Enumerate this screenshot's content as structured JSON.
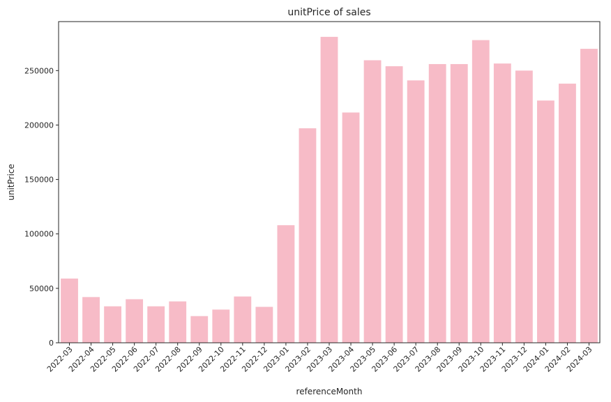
{
  "chart_data": {
    "type": "bar",
    "title": "unitPrice of sales",
    "xlabel": "referenceMonth",
    "ylabel": "unitPrice",
    "categories": [
      "2022-03",
      "2022-04",
      "2022-05",
      "2022-06",
      "2022-07",
      "2022-08",
      "2022-09",
      "2022-10",
      "2022-11",
      "2022-12",
      "2023-01",
      "2023-02",
      "2023-03",
      "2023-04",
      "2023-05",
      "2023-06",
      "2023-07",
      "2023-08",
      "2023-09",
      "2023-10",
      "2023-11",
      "2023-12",
      "2024-01",
      "2024-02",
      "2024-03"
    ],
    "values": [
      59000,
      42000,
      33500,
      40000,
      33500,
      38000,
      24500,
      30500,
      42500,
      33000,
      108000,
      197000,
      281000,
      211500,
      259500,
      254000,
      241000,
      256000,
      256000,
      278000,
      256500,
      250000,
      222500,
      238000,
      270000
    ],
    "ylim": [
      0,
      295000
    ],
    "yticks": [
      0,
      50000,
      100000,
      150000,
      200000,
      250000
    ],
    "ytick_labels": [
      "0",
      "50000",
      "100000",
      "150000",
      "200000",
      "250000"
    ],
    "bar_color": "#f7bbc7",
    "grid": false,
    "legend": "none"
  }
}
